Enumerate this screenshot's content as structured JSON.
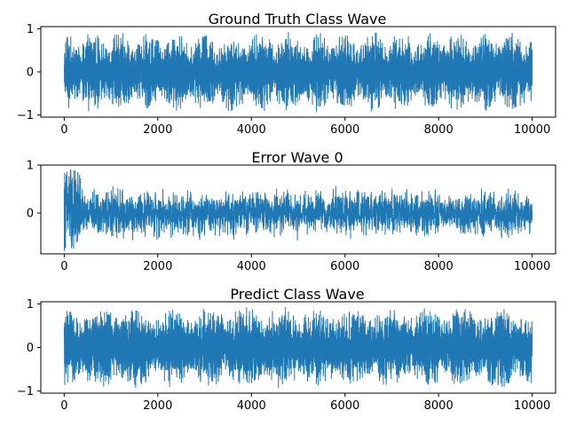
{
  "chart_data": [
    {
      "type": "line",
      "title": "Ground Truth Class Wave",
      "xlabel": "",
      "ylabel": "",
      "xlim": [
        -500,
        10500
      ],
      "ylim": [
        -1.05,
        1.05
      ],
      "xticks": [
        0,
        2000,
        4000,
        6000,
        8000,
        10000
      ],
      "xtick_labels": [
        "0",
        "2000",
        "4000",
        "6000",
        "8000",
        "10000"
      ],
      "yticks": [
        -1,
        0,
        1
      ],
      "ytick_labels": [
        "−1",
        "0",
        "1"
      ],
      "grid": false,
      "color": "#1f77b4",
      "signal": {
        "n_points": 10000,
        "x_range": [
          0,
          9999
        ],
        "envelope_period_x": 1200,
        "envelope_min": 0.25,
        "envelope_max": 0.95,
        "peak_abs": 1.0
      }
    },
    {
      "type": "line",
      "title": "Error Wave 0",
      "xlabel": "",
      "ylabel": "",
      "xlim": [
        -500,
        10500
      ],
      "ylim": [
        -0.85,
        1.0
      ],
      "xticks": [
        0,
        2000,
        4000,
        6000,
        8000,
        10000
      ],
      "xtick_labels": [
        "0",
        "2000",
        "4000",
        "6000",
        "8000",
        "10000"
      ],
      "yticks": [
        0,
        1
      ],
      "ytick_labels": [
        "0",
        "1"
      ],
      "grid": false,
      "color": "#1f77b4",
      "signal": {
        "n_points": 10000,
        "x_range": [
          0,
          9999
        ],
        "initial_spike_x": [
          0,
          350
        ],
        "initial_spike_range": [
          -0.8,
          0.95
        ],
        "typical_range": [
          -0.6,
          0.6
        ]
      }
    },
    {
      "type": "line",
      "title": "Predict Class Wave",
      "xlabel": "",
      "ylabel": "",
      "xlim": [
        -500,
        10500
      ],
      "ylim": [
        -1.05,
        1.05
      ],
      "xticks": [
        0,
        2000,
        4000,
        6000,
        8000,
        10000
      ],
      "xtick_labels": [
        "0",
        "2000",
        "4000",
        "6000",
        "8000",
        "10000"
      ],
      "yticks": [
        -1,
        0,
        1
      ],
      "ytick_labels": [
        "−1",
        "0",
        "1"
      ],
      "grid": false,
      "color": "#1f77b4",
      "signal": {
        "n_points": 10000,
        "x_range": [
          0,
          9999
        ],
        "envelope_period_x": 1550,
        "envelope_min": 0.3,
        "envelope_max": 0.95,
        "peak_abs": 1.0
      }
    }
  ]
}
